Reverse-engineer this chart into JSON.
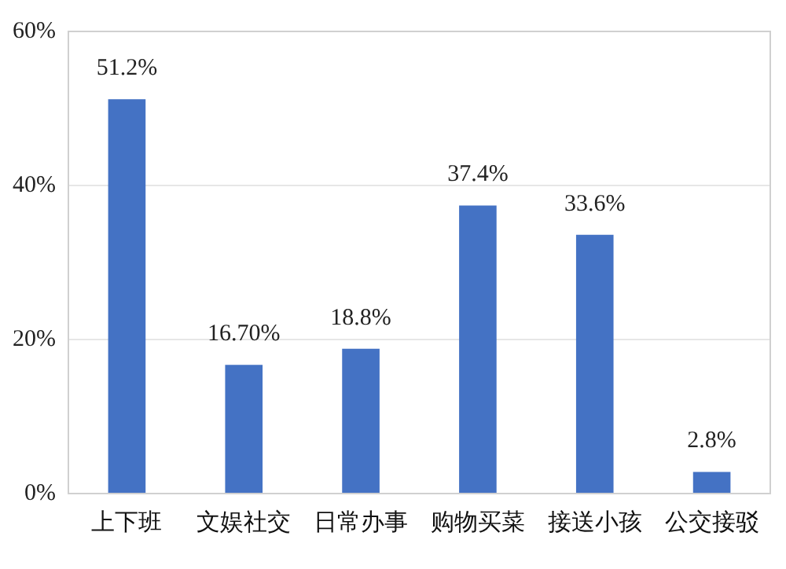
{
  "chart_data": {
    "type": "bar",
    "categories": [
      "上下班",
      "文娱社交",
      "日常办事",
      "购物买菜",
      "接送小孩",
      "公交接驳"
    ],
    "values": [
      51.2,
      16.7,
      18.8,
      37.4,
      33.6,
      2.8
    ],
    "value_labels": [
      "51.2%",
      "16.70%",
      "18.8%",
      "37.4%",
      "33.6%",
      "2.8%"
    ],
    "color": "#4472c4",
    "ylim": [
      0,
      60
    ],
    "yticks": [
      {
        "value": 0,
        "label": "0%"
      },
      {
        "value": 20,
        "label": "20%"
      },
      {
        "value": 40,
        "label": "40%"
      },
      {
        "value": 60,
        "label": "60%"
      }
    ],
    "grid": "y",
    "legend": false
  }
}
